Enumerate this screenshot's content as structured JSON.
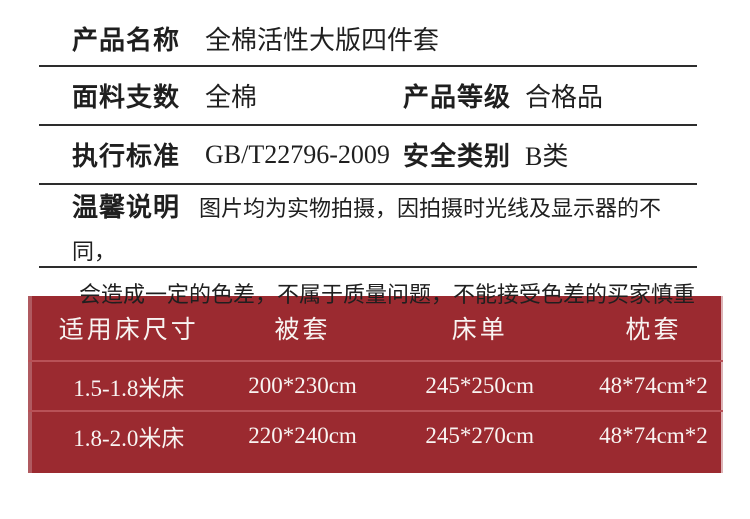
{
  "specs": {
    "rows": [
      {
        "label": "产品名称",
        "value": "全棉活性大版四件套"
      },
      {
        "label": "面料支数",
        "value": "全棉",
        "label2": "产品等级",
        "value2": "合格品"
      },
      {
        "label": "执行标准",
        "value": "GB/T22796-2009",
        "label2": "安全类别",
        "value2": "B类"
      }
    ],
    "note": {
      "label": "温馨说明",
      "line1": "图片均为实物拍摄，因拍摄时光线及显示器的不同，",
      "line2": "会造成一定的色差，不属于质量问题，不能接受色差的买家慎重"
    }
  },
  "size_table": {
    "headers": [
      "适用床尺寸",
      "被套",
      "床单",
      "枕套"
    ],
    "rows": [
      [
        "1.5-1.8米床",
        "200*230cm",
        "245*250cm",
        "48*74cm*2"
      ],
      [
        "1.8-2.0米床",
        "220*240cm",
        "245*270cm",
        "48*74cm*2"
      ]
    ]
  },
  "colors": {
    "table_background": "#9b2a30",
    "table_row_divider": "#b85157",
    "table_text": "#f8f4f2",
    "spec_divider": "#2d2d2d",
    "spec_text": "#1f1f1f"
  }
}
